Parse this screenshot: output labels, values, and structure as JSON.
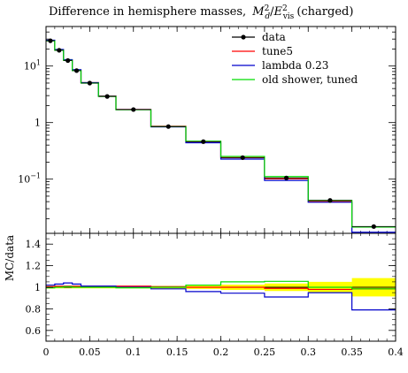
{
  "chart_data": [
    {
      "type": "line",
      "title": "Difference in hemisphere masses, M_d^2/E_vis^2 (charged)",
      "title_parts": {
        "text": "Difference in hemisphere masses,",
        "M": "M",
        "sup": "2",
        "sub": "d",
        "slash": "/",
        "E": "E",
        "Esup": "2",
        "Esub": "vis",
        "suffix": "(charged)"
      },
      "xlabel": "",
      "ylabel": "",
      "xlim": [
        0,
        0.4
      ],
      "ylim": [
        0.011,
        50
      ],
      "yscale": "log",
      "yticks": [
        {
          "value": 10,
          "label": "10",
          "sup": "1"
        },
        {
          "value": 1,
          "label": "1",
          "sup": ""
        },
        {
          "value": 0.1,
          "label": "10",
          "sup": "−1"
        }
      ],
      "bin_edges": [
        0,
        0.01,
        0.02,
        0.03,
        0.04,
        0.06,
        0.08,
        0.12,
        0.16,
        0.2,
        0.25,
        0.3,
        0.35,
        0.4
      ],
      "legend_position": "top-right",
      "series": [
        {
          "name": "data",
          "color": "#000000",
          "style": "points",
          "values": [
            28,
            19,
            12.5,
            8.3,
            5.0,
            2.9,
            1.7,
            0.85,
            0.46,
            0.24,
            0.105,
            0.042,
            0.0145
          ]
        },
        {
          "name": "tune5",
          "color": "#ff0000",
          "style": "step",
          "values": [
            28.2,
            19.1,
            12.7,
            8.4,
            5.1,
            2.95,
            1.71,
            0.86,
            0.46,
            0.24,
            0.102,
            0.04,
            0.0143
          ]
        },
        {
          "name": "lambda 0.23",
          "color": "#0000cc",
          "style": "step",
          "values": [
            28.6,
            19.6,
            13.0,
            8.6,
            5.1,
            2.93,
            1.7,
            0.84,
            0.44,
            0.226,
            0.095,
            0.039,
            0.0115
          ]
        },
        {
          "name": "old shower, tuned",
          "color": "#00dd00",
          "style": "step",
          "values": [
            27.8,
            19.0,
            12.6,
            8.3,
            5.0,
            2.9,
            1.69,
            0.85,
            0.47,
            0.252,
            0.111,
            0.042,
            0.0142
          ]
        }
      ]
    },
    {
      "type": "line",
      "title": "",
      "xlabel": "",
      "ylabel": "MC/data",
      "xlim": [
        0,
        0.4
      ],
      "ylim": [
        0.5,
        1.5
      ],
      "xticks": [
        {
          "value": 0,
          "label": "0"
        },
        {
          "value": 0.05,
          "label": "0.05"
        },
        {
          "value": 0.1,
          "label": "0.1"
        },
        {
          "value": 0.15,
          "label": "0.15"
        },
        {
          "value": 0.2,
          "label": "0.2"
        },
        {
          "value": 0.25,
          "label": "0.25"
        },
        {
          "value": 0.3,
          "label": "0.3"
        },
        {
          "value": 0.35,
          "label": "0.35"
        },
        {
          "value": 0.4,
          "label": "0.4"
        }
      ],
      "yticks": [
        {
          "value": 0.6,
          "label": "0.6"
        },
        {
          "value": 0.8,
          "label": "0.8"
        },
        {
          "value": 1.0,
          "label": "1"
        },
        {
          "value": 1.2,
          "label": "1.2"
        },
        {
          "value": 1.4,
          "label": "1.4"
        }
      ],
      "bin_edges": [
        0,
        0.01,
        0.02,
        0.03,
        0.04,
        0.06,
        0.08,
        0.12,
        0.16,
        0.2,
        0.25,
        0.3,
        0.35,
        0.4
      ],
      "uncertainty_band": {
        "color": "#ffff00",
        "half_width": [
          0.012,
          0.01,
          0.01,
          0.01,
          0.01,
          0.01,
          0.01,
          0.012,
          0.015,
          0.025,
          0.035,
          0.05,
          0.085
        ]
      },
      "series": [
        {
          "name": "tune5",
          "color": "#ff0000",
          "values": [
            1.005,
            1.01,
            1.01,
            1.01,
            1.01,
            1.01,
            1.01,
            1.005,
            1.0,
            1.0,
            0.99,
            0.98,
            0.985
          ]
        },
        {
          "name": "lambda 0.23",
          "color": "#0000cc",
          "values": [
            1.02,
            1.03,
            1.04,
            1.03,
            1.01,
            1.01,
            1.0,
            0.985,
            0.96,
            0.945,
            0.91,
            0.95,
            0.79
          ]
        },
        {
          "name": "old shower, tuned",
          "color": "#00dd00",
          "values": [
            0.995,
            1.0,
            1.005,
            1.0,
            1.0,
            1.0,
            0.995,
            1.0,
            1.02,
            1.05,
            1.055,
            1.0,
            0.985
          ]
        }
      ]
    }
  ]
}
